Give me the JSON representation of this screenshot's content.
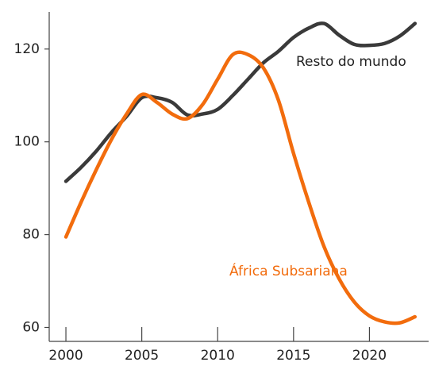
{
  "chart_data": {
    "type": "line",
    "x": [
      2000,
      2001,
      2002,
      2003,
      2004,
      2005,
      2006,
      2007,
      2008,
      2009,
      2010,
      2011,
      2012,
      2013,
      2014,
      2015,
      2016,
      2017,
      2018,
      2019,
      2020,
      2021,
      2022,
      2023
    ],
    "series": [
      {
        "name": "Resto do mundo",
        "color": "#3a3a3a",
        "values": [
          91.5,
          94.5,
          98,
          102,
          105.5,
          109.5,
          109.5,
          108.5,
          105.8,
          106,
          107,
          110,
          113.5,
          117,
          119.5,
          122.5,
          124.5,
          125.5,
          123,
          121,
          120.8,
          121.2,
          122.8,
          125.5
        ]
      },
      {
        "name": "África Subsariana",
        "color": "#f26c0d",
        "values": [
          79.5,
          87,
          94,
          100.5,
          106,
          110.2,
          108.5,
          106,
          105,
          108,
          113.5,
          118.8,
          118.8,
          116,
          109,
          97.5,
          87,
          77.5,
          70.5,
          65.5,
          62.5,
          61.2,
          61,
          62.3
        ]
      }
    ],
    "xlim": [
      1998.9,
      2023.9
    ],
    "xticks": [
      2000,
      2005,
      2010,
      2015,
      2020
    ],
    "ylim": [
      57,
      128
    ],
    "yticks": [
      60,
      80,
      100,
      120
    ]
  }
}
